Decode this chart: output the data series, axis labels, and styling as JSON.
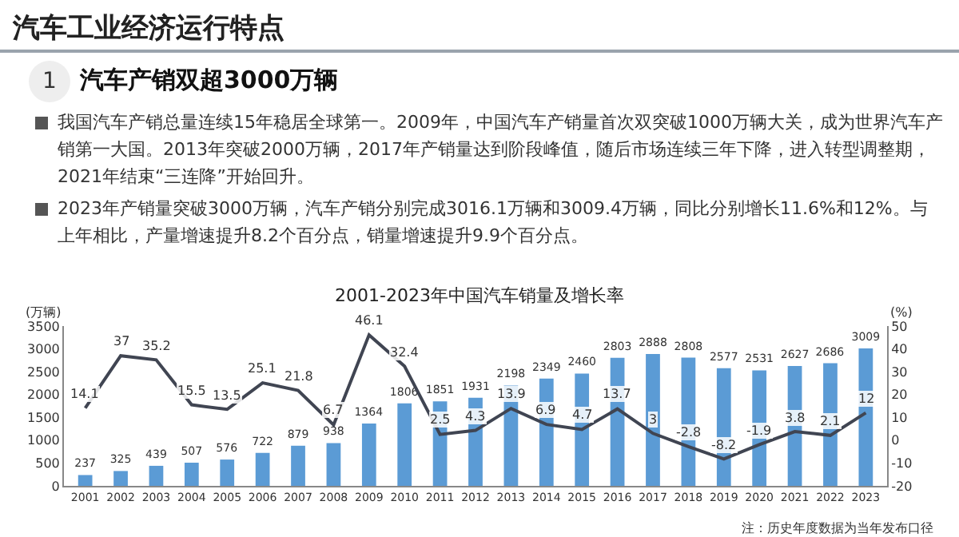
{
  "chart_data": {
    "type": "bar",
    "title": "2001-2023年中国汽车销量及增长率",
    "categories": [
      "2001",
      "2002",
      "2003",
      "2004",
      "2005",
      "2006",
      "2007",
      "2008",
      "2009",
      "2010",
      "2011",
      "2012",
      "2013",
      "2014",
      "2015",
      "2016",
      "2017",
      "2018",
      "2019",
      "2020",
      "2021",
      "2022",
      "2023"
    ],
    "series": [
      {
        "color": "#5b9bd5",
        "values": [
          237,
          325,
          439,
          507,
          576,
          722,
          879,
          938,
          1364,
          1806,
          1851,
          1931,
          2198,
          2349,
          2460,
          2803,
          2888,
          2808,
          2577,
          2531,
          2627,
          2686,
          3009
        ]
      },
      {
        "type": "line",
        "axis": "y2",
        "color": "#404552",
        "values": [
          14.1,
          37,
          35.2,
          15.5,
          13.5,
          25.1,
          21.8,
          6.7,
          46.1,
          32.4,
          2.5,
          4.3,
          13.9,
          6.9,
          4.7,
          13.7,
          3,
          -2.8,
          -8.2,
          -1.9,
          3.8,
          2.1,
          12
        ]
      }
    ],
    "ylabel": "(万辆)",
    "y2label": "(%)",
    "ylim": [
      0,
      3500
    ],
    "yticks": [
      0,
      500,
      1000,
      1500,
      2000,
      2500,
      3000,
      3500
    ],
    "y2lim": [
      -20,
      50
    ],
    "y2ticks": [
      -20,
      -10,
      0,
      10,
      20,
      30,
      40,
      50
    ],
    "data_labels": true,
    "grid": false,
    "marker": "none",
    "line_style": "solid",
    "annotations": [
      "汽车工业经济运行特点",
      "1",
      "汽车产销双超3000万辆",
      "我国汽车产销总量连续15年稳居全球第一。2009年，中国汽车产销量首次双突破1000万辆大关，成为世界汽车产销第一大国。2013年突破2000万辆，2017年产销量达到阶段峰值，随后市场连续三年下降，进入转型调整期，2021年结束“三连降”开始回升。",
      "2023年产销量突破3000万辆，汽车产销分别完成3016.1万辆和3009.4万辆，同比分别增长11.6%和12%。与上年相比，产量增速提升8.2个百分点，销量增速提升9.9个百分点。",
      "注：历史年度数据为当年发布口径"
    ]
  }
}
